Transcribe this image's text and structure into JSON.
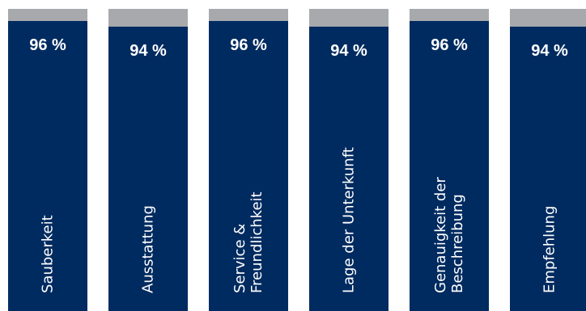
{
  "chart_data": {
    "type": "bar",
    "categories": [
      "Sauberkeit",
      "Ausstattung",
      "Service &\nFreundlichkeit",
      "Lage der Unterkunft",
      "Genauigkeit der\nBeschreibung",
      "Empfehlung"
    ],
    "values": [
      96,
      94,
      96,
      94,
      96,
      94
    ],
    "value_labels": [
      "96 %",
      "94 %",
      "96 %",
      "94 %",
      "96 %",
      "94 %"
    ],
    "ylim": [
      0,
      100
    ],
    "title": "",
    "xlabel": "",
    "ylabel": "",
    "grid": false,
    "legend": "none",
    "colors": {
      "fill": "#002b60",
      "remainder": "#a7a9ac",
      "text": "#ffffff"
    }
  }
}
